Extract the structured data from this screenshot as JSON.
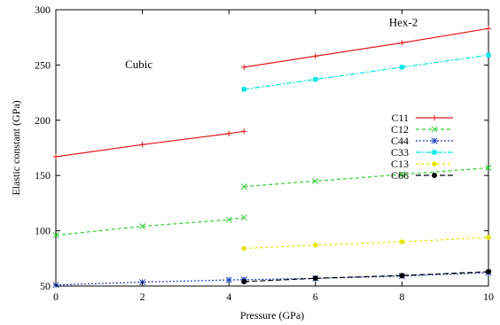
{
  "chart_data": {
    "type": "line",
    "xlabel": "Pressure (GPa)",
    "ylabel": "Elastic constant (GPa)",
    "xlim": [
      0,
      10
    ],
    "ylim": [
      50,
      300
    ],
    "xticks": [
      0,
      2,
      4,
      6,
      8,
      10
    ],
    "yticks": [
      50,
      100,
      150,
      200,
      250,
      300
    ],
    "annotations": [
      {
        "text": "Cubic",
        "x": 1.6,
        "y": 247
      },
      {
        "text": "Hex-2",
        "x": 7.7,
        "y": 285
      }
    ],
    "legend_position": "right",
    "series": [
      {
        "name": "C11",
        "color": "#e41a1c",
        "dash": "",
        "marker": "plus",
        "segments": [
          {
            "x": [
              0,
              2,
              4,
              4.35
            ],
            "y": [
              167,
              178,
              188,
              190
            ]
          },
          {
            "x": [
              4.35,
              6,
              8,
              10
            ],
            "y": [
              248,
              258,
              270,
              283
            ]
          }
        ]
      },
      {
        "name": "C12",
        "color": "#33cc33",
        "dash": "4,3",
        "marker": "x",
        "segments": [
          {
            "x": [
              0,
              2,
              4,
              4.35
            ],
            "y": [
              96,
              104,
              110,
              112
            ]
          },
          {
            "x": [
              4.35,
              6,
              8,
              10
            ],
            "y": [
              140,
              145,
              151,
              157
            ]
          }
        ]
      },
      {
        "name": "C44",
        "color": "#1f3fbf",
        "dash": "2,2",
        "marker": "star",
        "segments": [
          {
            "x": [
              0,
              2,
              4,
              4.35
            ],
            "y": [
              51,
              53.5,
              55.5,
              55.8
            ]
          },
          {
            "x": [
              4.35,
              6,
              8,
              10
            ],
            "y": [
              55.8,
              57,
              59,
              62
            ]
          }
        ]
      },
      {
        "name": "C33",
        "color": "#00e5e5",
        "dash": "6,2,2,2",
        "marker": "square",
        "segments": [
          {
            "x": [
              4.35,
              6,
              8,
              10
            ],
            "y": [
              228,
              237,
              248,
              259
            ]
          }
        ]
      },
      {
        "name": "C13",
        "color": "#e5e500",
        "dash": "3,3",
        "marker": "circle",
        "segments": [
          {
            "x": [
              4.35,
              6,
              8,
              10
            ],
            "y": [
              84,
              87,
              90,
              94
            ]
          }
        ]
      },
      {
        "name": "C66",
        "color": "#000000",
        "dash": "6,3",
        "marker": "dot",
        "segments": [
          {
            "x": [
              4.35,
              6,
              8,
              10
            ],
            "y": [
              54,
              57,
              59.5,
              63
            ]
          }
        ]
      }
    ]
  }
}
